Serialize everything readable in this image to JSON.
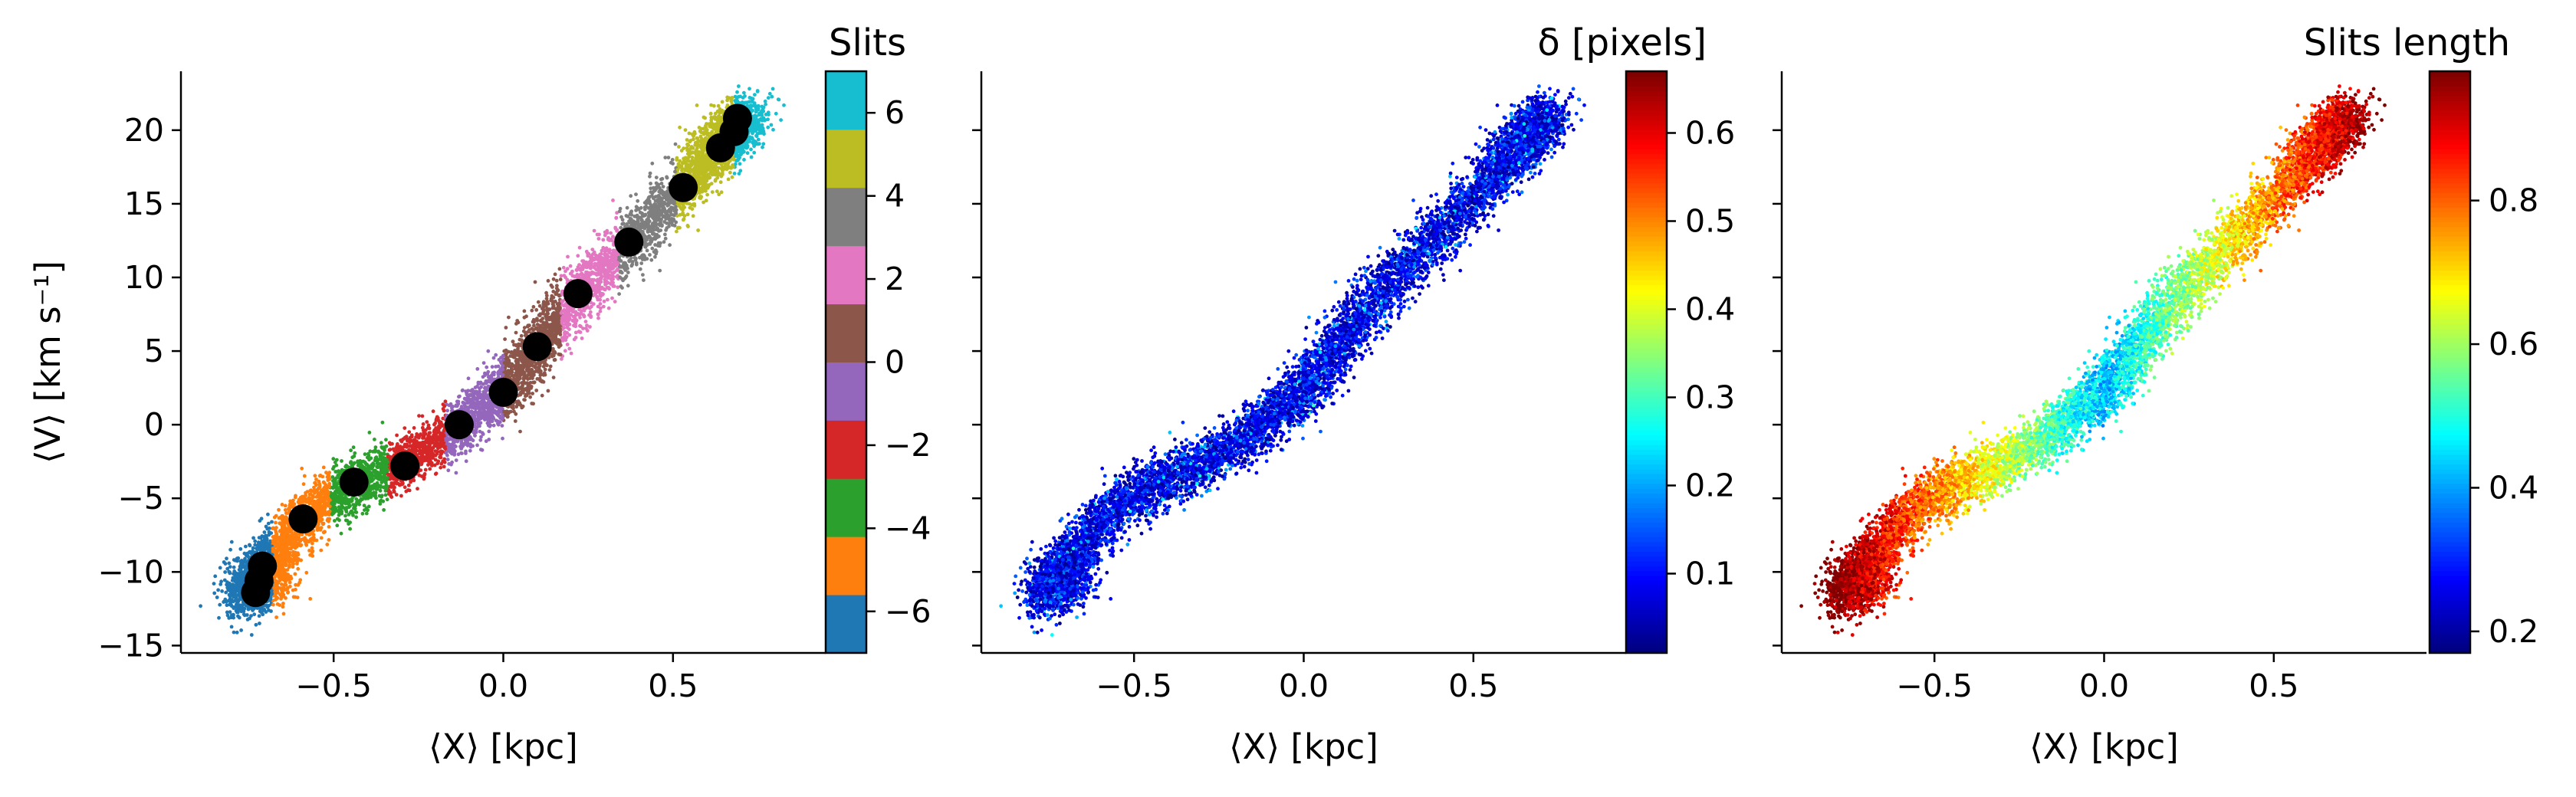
{
  "figure": {
    "shared_ylabel": "⟨V⟩ [km s⁻¹]"
  },
  "chart_data": [
    {
      "type": "scatter",
      "colorbar_title": "Slits",
      "xlabel": "⟨X⟩ [kpc]",
      "ylabel": "⟨V⟩ [km s⁻¹]",
      "xlim": [
        -0.95,
        0.95
      ],
      "ylim": [
        -15.5,
        24
      ],
      "x_ticks": [
        -0.5,
        0.0,
        0.5
      ],
      "x_tick_labels": [
        "−0.5",
        "0.0",
        "0.5"
      ],
      "y_ticks": [
        -15,
        -10,
        -5,
        0,
        5,
        10,
        15,
        20
      ],
      "y_tick_labels": [
        "−15",
        "−10",
        "−5",
        "0",
        "5",
        "10",
        "15",
        "20"
      ],
      "colorbar": {
        "kind": "discrete",
        "range": [
          -7,
          7
        ],
        "ticks": [
          -6,
          -4,
          -2,
          0,
          2,
          4,
          6
        ],
        "tick_labels": [
          "−6",
          "−4",
          "−2",
          "0",
          "2",
          "4",
          "6"
        ],
        "colors": [
          "#1f77b4",
          "#ff7f0e",
          "#2ca02c",
          "#d62728",
          "#9467bd",
          "#8c564b",
          "#e377c2",
          "#7f7f7f",
          "#bcbd22",
          "#17becf"
        ]
      },
      "slit_centers": [
        {
          "x": 0.69,
          "y": 20.8
        },
        {
          "x": 0.68,
          "y": 19.9
        },
        {
          "x": 0.64,
          "y": 18.8
        },
        {
          "x": 0.53,
          "y": 16.1
        },
        {
          "x": 0.37,
          "y": 12.4
        },
        {
          "x": 0.22,
          "y": 8.9
        },
        {
          "x": 0.1,
          "y": 5.3
        },
        {
          "x": 0.0,
          "y": 2.2
        },
        {
          "x": -0.13,
          "y": 0.0
        },
        {
          "x": -0.29,
          "y": -2.8
        },
        {
          "x": -0.44,
          "y": -3.9
        },
        {
          "x": -0.59,
          "y": -6.4
        },
        {
          "x": -0.71,
          "y": -9.6
        },
        {
          "x": -0.72,
          "y": -10.6
        },
        {
          "x": -0.73,
          "y": -11.4
        }
      ],
      "marker_color": "#000000"
    },
    {
      "type": "scatter",
      "colorbar_title": "δ [pixels]",
      "xlabel": "⟨X⟩ [kpc]",
      "xlim": [
        -0.95,
        0.95
      ],
      "ylim": [
        -15.5,
        24
      ],
      "x_ticks": [
        -0.5,
        0.0,
        0.5
      ],
      "x_tick_labels": [
        "−0.5",
        "0.0",
        "0.5"
      ],
      "y_ticks": [
        -15,
        -10,
        -5,
        0,
        5,
        10,
        15,
        20
      ],
      "colorbar": {
        "kind": "continuous",
        "colormap": "jet",
        "range": [
          0.01,
          0.67
        ],
        "ticks": [
          0.1,
          0.2,
          0.3,
          0.4,
          0.5,
          0.6
        ],
        "tick_labels": [
          "0.1",
          "0.2",
          "0.3",
          "0.4",
          "0.5",
          "0.6"
        ]
      }
    },
    {
      "type": "scatter",
      "colorbar_title": "Slits length",
      "xlabel": "⟨X⟩ [kpc]",
      "xlim": [
        -0.95,
        0.95
      ],
      "ylim": [
        -15.5,
        24
      ],
      "x_ticks": [
        -0.5,
        0.0,
        0.5
      ],
      "x_tick_labels": [
        "−0.5",
        "0.0",
        "0.5"
      ],
      "y_ticks": [
        -15,
        -10,
        -5,
        0,
        5,
        10,
        15,
        20
      ],
      "colorbar": {
        "kind": "continuous",
        "colormap": "jet",
        "range": [
          0.17,
          0.98
        ],
        "ticks": [
          0.2,
          0.4,
          0.6,
          0.8
        ],
        "tick_labels": [
          "0.2",
          "0.4",
          "0.6",
          "0.8"
        ]
      }
    }
  ]
}
